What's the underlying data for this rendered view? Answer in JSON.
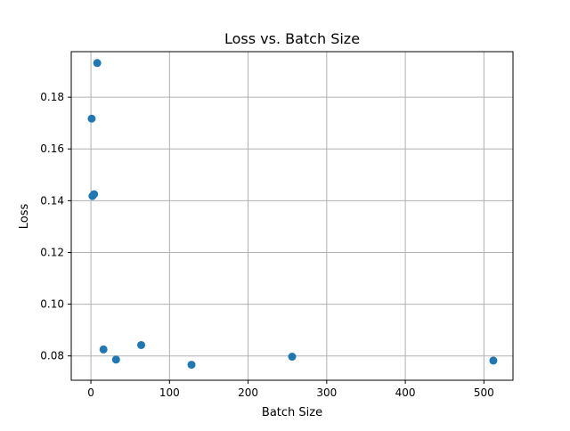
{
  "chart_data": {
    "type": "scatter",
    "title": "Loss vs. Batch Size",
    "xlabel": "Batch Size",
    "ylabel": "Loss",
    "xlim": [
      -25,
      537
    ],
    "ylim": [
      0.0706,
      0.1976
    ],
    "xticks": [
      0,
      100,
      200,
      300,
      400,
      500
    ],
    "yticks": [
      0.08,
      0.1,
      0.12,
      0.14,
      0.16,
      0.18
    ],
    "ytick_labels": [
      "0.08",
      "0.10",
      "0.12",
      "0.14",
      "0.16",
      "0.18"
    ],
    "grid": true,
    "marker_color": "#1f77b4",
    "points": [
      {
        "x": 1,
        "y": 0.1717
      },
      {
        "x": 2,
        "y": 0.1418
      },
      {
        "x": 4,
        "y": 0.1425
      },
      {
        "x": 8,
        "y": 0.1932
      },
      {
        "x": 16,
        "y": 0.0825
      },
      {
        "x": 32,
        "y": 0.0786
      },
      {
        "x": 64,
        "y": 0.0842
      },
      {
        "x": 128,
        "y": 0.0766
      },
      {
        "x": 256,
        "y": 0.0797
      },
      {
        "x": 512,
        "y": 0.0782
      }
    ]
  }
}
